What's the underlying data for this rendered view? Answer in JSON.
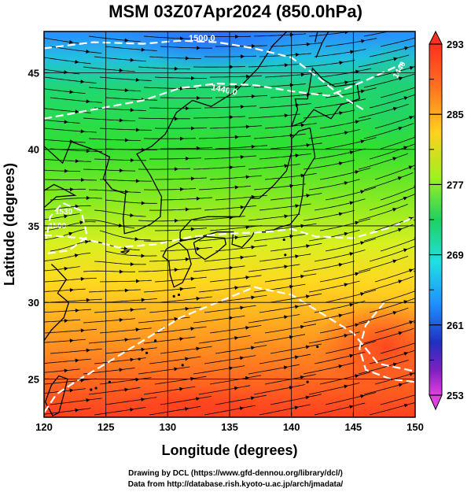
{
  "title": "MSM 03Z07Apr2024 (850.0hPa)",
  "axes": {
    "xlabel": "Longitude (degrees)",
    "ylabel": "Latitude (degrees)",
    "x_ticks": [
      "120",
      "125",
      "130",
      "135",
      "140",
      "145",
      "150"
    ],
    "y_ticks": [
      "25",
      "30",
      "35",
      "40",
      "45"
    ]
  },
  "colorbar": {
    "ticks": [
      "293",
      "285",
      "277",
      "269",
      "261",
      "253"
    ],
    "range": [
      253,
      293
    ],
    "colors": [
      "#e040e0",
      "#8020c0",
      "#2020c0",
      "#2060ff",
      "#20b0ff",
      "#20e0c0",
      "#20d060",
      "#40e020",
      "#c0f020",
      "#ffe020",
      "#ffa020",
      "#ff6020",
      "#ff3020"
    ]
  },
  "contours": {
    "labels": [
      "1500.0",
      "1440.0",
      "1530",
      "1500",
      "1440"
    ]
  },
  "footer": {
    "line1": "Drawing by DCL (https://www.gfd-dennou.org/library/dcl/)",
    "line2": "Data from http://database.rish.kyoto-u.ac.jp/arch/jmadata/"
  }
}
